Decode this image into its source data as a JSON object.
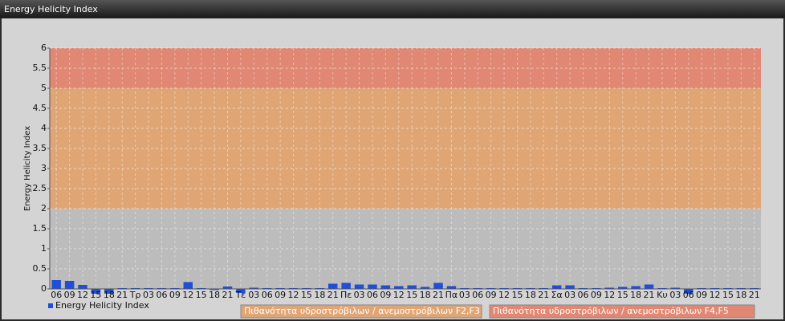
{
  "chart_data": {
    "type": "bar",
    "title": "Energy Helicity Index",
    "y_label": "Energy Helicity Index",
    "categories": [
      "06",
      "09",
      "12",
      "15",
      "18",
      "21",
      "Τρ",
      "03",
      "06",
      "09",
      "12",
      "15",
      "18",
      "21",
      "Τε",
      "03",
      "06",
      "09",
      "12",
      "15",
      "18",
      "21",
      "Πε",
      "03",
      "06",
      "09",
      "12",
      "15",
      "18",
      "21",
      "Πα",
      "03",
      "06",
      "09",
      "12",
      "15",
      "18",
      "21",
      "Σα",
      "03",
      "06",
      "09",
      "12",
      "15",
      "18",
      "21",
      "Κυ",
      "03",
      "06",
      "09",
      "12",
      "15",
      "18",
      "21"
    ],
    "series": [
      {
        "name": "Energy Helicity Index",
        "color": "#1f4fd8",
        "values": [
          0.22,
          0.2,
          0.1,
          -0.12,
          -0.12,
          0.02,
          0.02,
          0.02,
          0.02,
          0.02,
          0.17,
          0.02,
          -0.03,
          0.06,
          -0.1,
          0.03,
          0.02,
          0.02,
          0.02,
          0.02,
          0.02,
          0.13,
          0.15,
          0.11,
          0.11,
          0.09,
          0.07,
          0.09,
          0.05,
          0.15,
          0.07,
          0.02,
          0.02,
          0.02,
          0.02,
          0.02,
          0.02,
          0.02,
          0.09,
          0.09,
          0.02,
          0.02,
          0.03,
          0.05,
          0.07,
          0.11,
          0.02,
          0.03,
          -0.12,
          0.02,
          0.02,
          0.02,
          0.02,
          0.02
        ]
      }
    ],
    "ylim": [
      0,
      6
    ],
    "yticks": [
      0,
      0.5,
      1,
      1.5,
      2,
      2.5,
      3,
      3.5,
      4,
      4.5,
      5,
      5.5,
      6
    ],
    "grid": true,
    "bands": [
      {
        "from": 0,
        "to": 2,
        "color": "#bcbcbc"
      },
      {
        "from": 2,
        "to": 5,
        "color": "#e0a575",
        "label": "Πιθανότητα υδροστρόβιλων / ανεμοστρόβιλων F2,F3"
      },
      {
        "from": 5,
        "to": 6,
        "color": "#e08873",
        "label": "Πιθανότητα υδροστρόβιλων / ανεμοστρόβιλων F4,F5"
      }
    ]
  }
}
